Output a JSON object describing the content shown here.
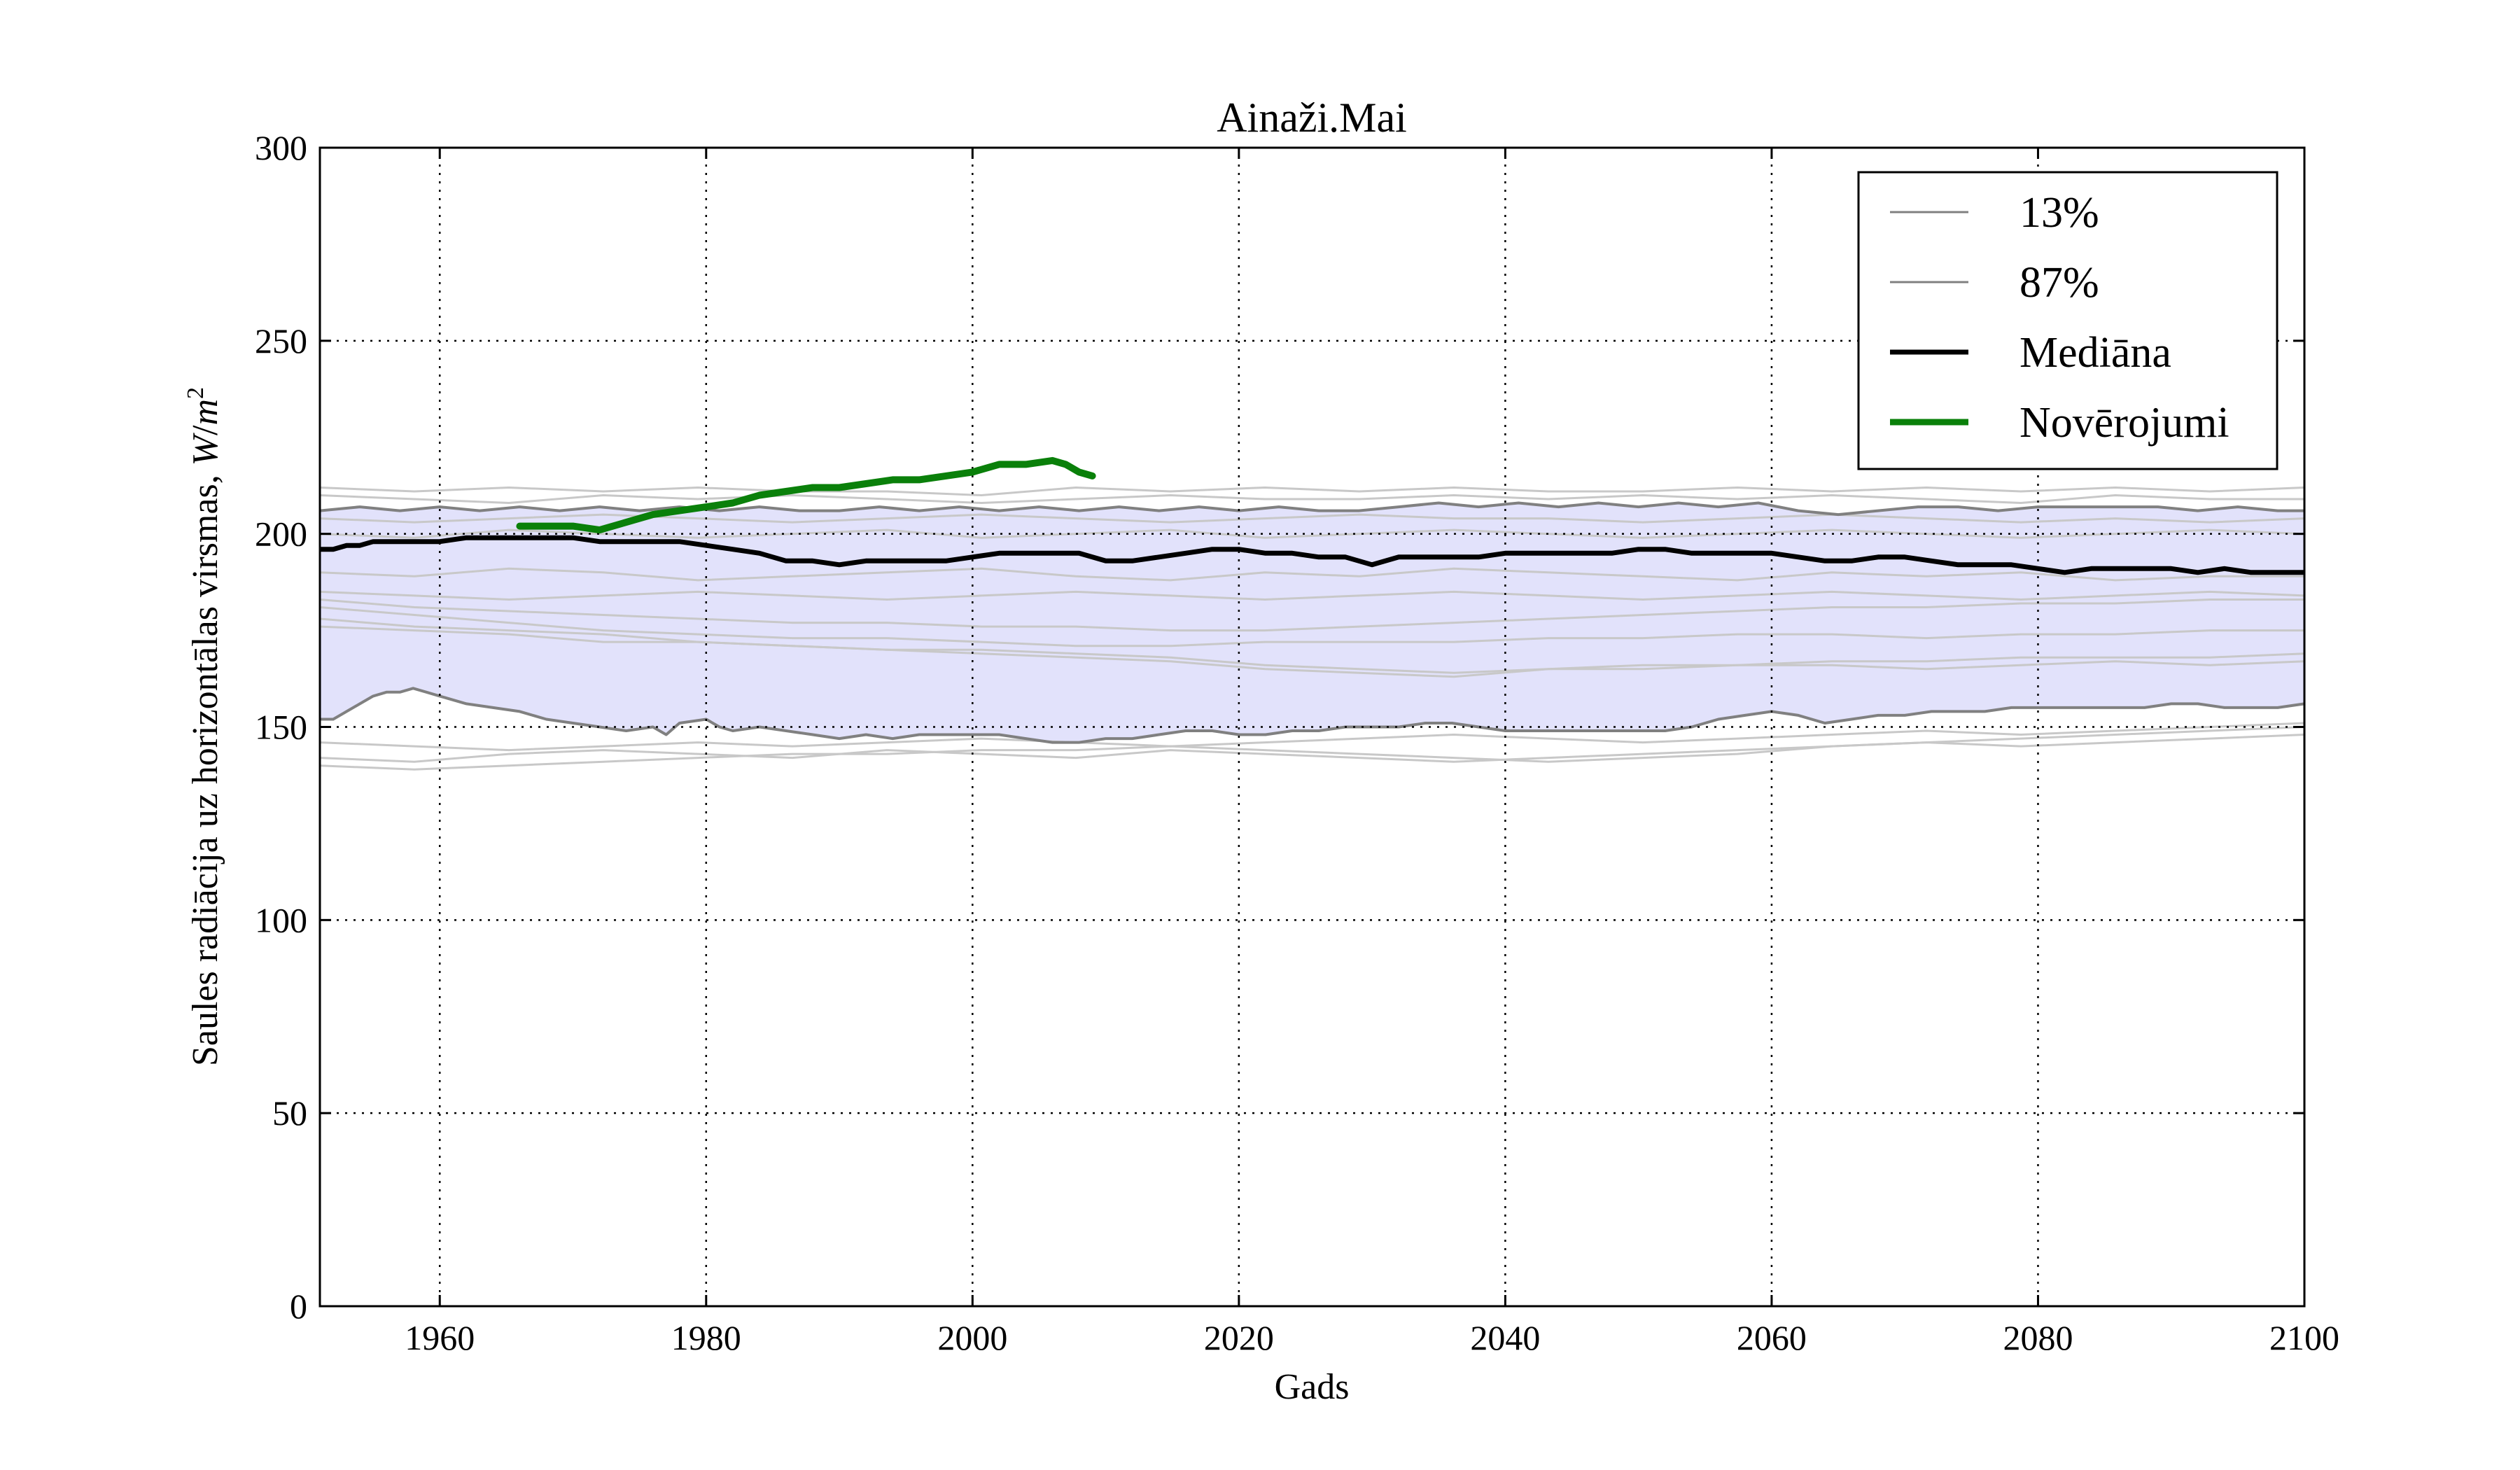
{
  "chart_data": {
    "type": "line",
    "title": "Ainaži.Mai",
    "xlabel": "Gads",
    "ylabel_text": "Saules radiācija uz horizontālas virsmas, ",
    "ylabel_unit_W": "W",
    "ylabel_unit_m": "m",
    "ylabel_unit_exp": "2",
    "xlim": [
      1951,
      2100
    ],
    "ylim": [
      0,
      300
    ],
    "xticks": [
      1960,
      1980,
      2000,
      2020,
      2040,
      2060,
      2080,
      2100
    ],
    "yticks": [
      0,
      50,
      100,
      150,
      200,
      250,
      300
    ],
    "grid": true,
    "legend_position": "top-right",
    "legend": [
      {
        "label": "13%",
        "style": "thin-gray"
      },
      {
        "label": "87%",
        "style": "thin-gray"
      },
      {
        "label": "Mediāna",
        "style": "thick-black"
      },
      {
        "label": "Novērojumi",
        "style": "thick-green"
      }
    ],
    "colors": {
      "band": "#e2e2fb",
      "percentile": "#808080",
      "ensemble": "#c8c8c8",
      "median": "#000000",
      "observations": "#0a800a"
    },
    "band_13": {
      "x": [
        1951,
        1952,
        1953,
        1954,
        1955,
        1956,
        1957,
        1958,
        1959,
        1960,
        1962,
        1964,
        1966,
        1968,
        1970,
        1972,
        1974,
        1976,
        1977,
        1978,
        1980,
        1981,
        1982,
        1984,
        1986,
        1988,
        1990,
        1992,
        1994,
        1996,
        1998,
        2000,
        2002,
        2004,
        2006,
        2008,
        2010,
        2012,
        2014,
        2016,
        2018,
        2020,
        2022,
        2024,
        2026,
        2028,
        2030,
        2032,
        2034,
        2036,
        2038,
        2040,
        2042,
        2044,
        2046,
        2048,
        2050,
        2052,
        2054,
        2056,
        2058,
        2060,
        2062,
        2064,
        2066,
        2068,
        2070,
        2072,
        2074,
        2076,
        2078,
        2080,
        2082,
        2084,
        2086,
        2088,
        2090,
        2092,
        2094,
        2096,
        2098,
        2100
      ],
      "values": [
        152,
        152,
        154,
        156,
        158,
        159,
        159,
        160,
        159,
        158,
        156,
        155,
        154,
        152,
        151,
        150,
        149,
        150,
        148,
        151,
        152,
        150,
        149,
        150,
        149,
        148,
        147,
        148,
        147,
        148,
        148,
        148,
        148,
        147,
        146,
        146,
        147,
        147,
        148,
        149,
        149,
        148,
        148,
        149,
        149,
        150,
        150,
        150,
        151,
        151,
        150,
        149,
        149,
        149,
        149,
        149,
        149,
        149,
        150,
        152,
        153,
        154,
        153,
        151,
        152,
        153,
        153,
        154,
        154,
        154,
        155,
        155,
        155,
        155,
        155,
        155,
        156,
        156,
        155,
        155,
        155,
        156
      ]
    },
    "band_87": {
      "x": [
        1951,
        1954,
        1957,
        1960,
        1963,
        1966,
        1969,
        1972,
        1975,
        1978,
        1981,
        1984,
        1987,
        1990,
        1993,
        1996,
        1999,
        2002,
        2005,
        2008,
        2011,
        2014,
        2017,
        2020,
        2023,
        2026,
        2029,
        2032,
        2035,
        2038,
        2041,
        2044,
        2047,
        2050,
        2053,
        2056,
        2059,
        2062,
        2065,
        2068,
        2071,
        2074,
        2077,
        2080,
        2083,
        2086,
        2089,
        2092,
        2095,
        2098,
        2100
      ],
      "values": [
        206,
        207,
        206,
        207,
        206,
        207,
        206,
        207,
        206,
        207,
        206,
        207,
        206,
        206,
        207,
        206,
        207,
        206,
        207,
        206,
        207,
        206,
        207,
        206,
        207,
        206,
        206,
        207,
        208,
        207,
        208,
        207,
        208,
        207,
        208,
        207,
        208,
        206,
        205,
        206,
        207,
        207,
        206,
        207,
        207,
        207,
        207,
        206,
        207,
        206,
        206
      ]
    },
    "median": {
      "x": [
        1951,
        1952,
        1953,
        1954,
        1955,
        1956,
        1958,
        1960,
        1962,
        1964,
        1966,
        1968,
        1970,
        1972,
        1974,
        1976,
        1978,
        1980,
        1982,
        1984,
        1986,
        1988,
        1990,
        1992,
        1994,
        1996,
        1998,
        2000,
        2002,
        2004,
        2006,
        2008,
        2010,
        2012,
        2014,
        2016,
        2018,
        2020,
        2022,
        2024,
        2026,
        2028,
        2030,
        2032,
        2034,
        2036,
        2038,
        2040,
        2042,
        2044,
        2046,
        2048,
        2050,
        2052,
        2054,
        2056,
        2058,
        2060,
        2062,
        2064,
        2066,
        2068,
        2070,
        2072,
        2074,
        2076,
        2078,
        2080,
        2082,
        2084,
        2086,
        2088,
        2090,
        2092,
        2094,
        2096,
        2098,
        2100
      ],
      "values": [
        196,
        196,
        197,
        197,
        198,
        198,
        198,
        198,
        199,
        199,
        199,
        199,
        199,
        198,
        198,
        198,
        198,
        197,
        196,
        195,
        193,
        193,
        192,
        193,
        193,
        193,
        193,
        194,
        195,
        195,
        195,
        195,
        193,
        193,
        194,
        195,
        196,
        196,
        195,
        195,
        194,
        194,
        192,
        194,
        194,
        194,
        194,
        195,
        195,
        195,
        195,
        195,
        196,
        196,
        195,
        195,
        195,
        195,
        194,
        193,
        193,
        194,
        194,
        193,
        192,
        192,
        192,
        191,
        190,
        191,
        191,
        191,
        191,
        190,
        191,
        190,
        190,
        190
      ]
    },
    "observations": {
      "x": [
        1966,
        1968,
        1970,
        1972,
        1974,
        1976,
        1978,
        1980,
        1982,
        1984,
        1986,
        1988,
        1990,
        1992,
        1994,
        1996,
        1998,
        2000,
        2001,
        2002,
        2004,
        2006,
        2007,
        2008,
        2009
      ],
      "values": [
        202,
        202,
        202,
        201,
        203,
        205,
        206,
        207,
        208,
        210,
        211,
        212,
        212,
        213,
        214,
        214,
        215,
        216,
        217,
        218,
        218,
        219,
        218,
        216,
        215
      ]
    },
    "ensemble_members": [
      {
        "name": "member-1",
        "values": [
          212,
          211,
          212,
          211,
          212,
          211,
          211,
          210,
          212,
          211,
          212,
          211,
          212,
          211,
          211,
          212,
          211,
          212,
          211,
          212,
          211,
          212
        ]
      },
      {
        "name": "member-2",
        "values": [
          210,
          209,
          208,
          210,
          209,
          210,
          209,
          208,
          209,
          210,
          209,
          209,
          210,
          209,
          210,
          209,
          210,
          209,
          208,
          210,
          209,
          209
        ]
      },
      {
        "name": "member-3",
        "values": [
          204,
          203,
          204,
          205,
          204,
          203,
          204,
          205,
          204,
          203,
          204,
          205,
          204,
          204,
          203,
          204,
          205,
          204,
          203,
          204,
          203,
          204
        ]
      },
      {
        "name": "member-4",
        "values": [
          200,
          199,
          201,
          200,
          199,
          200,
          201,
          199,
          200,
          201,
          199,
          200,
          201,
          200,
          199,
          200,
          201,
          200,
          199,
          200,
          201,
          200
        ]
      },
      {
        "name": "member-5",
        "values": [
          190,
          189,
          191,
          190,
          188,
          189,
          190,
          191,
          189,
          188,
          190,
          189,
          191,
          190,
          189,
          188,
          190,
          189,
          190,
          188,
          189,
          189
        ]
      },
      {
        "name": "member-6",
        "values": [
          185,
          184,
          183,
          184,
          185,
          184,
          183,
          184,
          185,
          184,
          183,
          184,
          185,
          184,
          183,
          184,
          185,
          184,
          183,
          184,
          185,
          184
        ]
      },
      {
        "name": "member-7",
        "values": [
          183,
          181,
          180,
          179,
          178,
          177,
          177,
          176,
          176,
          175,
          175,
          176,
          177,
          178,
          179,
          180,
          181,
          181,
          182,
          182,
          183,
          183
        ]
      },
      {
        "name": "member-8",
        "values": [
          181,
          179,
          177,
          175,
          174,
          173,
          173,
          172,
          171,
          171,
          172,
          172,
          172,
          173,
          173,
          174,
          174,
          173,
          174,
          174,
          175,
          175
        ]
      },
      {
        "name": "member-9",
        "values": [
          178,
          176,
          175,
          174,
          172,
          171,
          170,
          170,
          169,
          168,
          166,
          165,
          164,
          165,
          166,
          166,
          167,
          167,
          168,
          168,
          168,
          169
        ]
      },
      {
        "name": "member-10",
        "values": [
          176,
          175,
          174,
          172,
          172,
          171,
          170,
          169,
          168,
          167,
          165,
          164,
          163,
          165,
          165,
          166,
          166,
          165,
          166,
          167,
          166,
          167
        ]
      },
      {
        "name": "member-11",
        "values": [
          142,
          141,
          143,
          144,
          143,
          142,
          144,
          143,
          142,
          144,
          143,
          142,
          141,
          142,
          143,
          144,
          145,
          146,
          147,
          148,
          149,
          150
        ]
      },
      {
        "name": "member-12",
        "values": [
          140,
          139,
          140,
          141,
          142,
          143,
          143,
          144,
          144,
          145,
          144,
          143,
          142,
          141,
          142,
          143,
          145,
          146,
          145,
          146,
          147,
          148
        ]
      },
      {
        "name": "member-13",
        "values": [
          146,
          145,
          144,
          145,
          146,
          145,
          146,
          147,
          146,
          145,
          146,
          147,
          148,
          147,
          146,
          147,
          148,
          149,
          148,
          149,
          150,
          151
        ]
      }
    ]
  }
}
